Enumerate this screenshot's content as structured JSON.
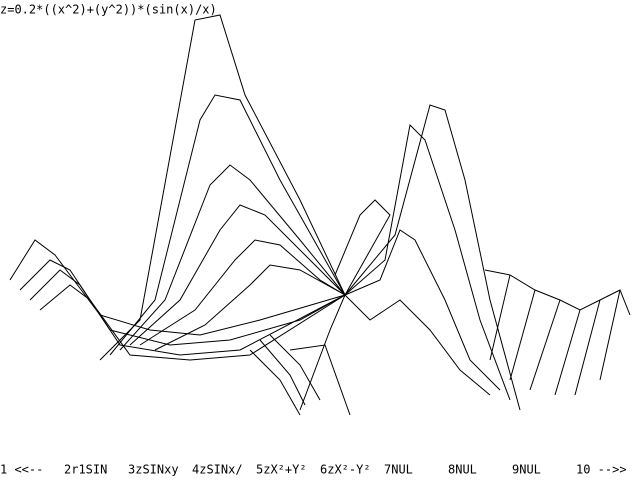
{
  "formula": "z=0.2*((x^2)+(y^2))*(sin(x)/x)",
  "menu": [
    "1 <<--",
    "2r1SIN",
    "3zSINxy",
    "4zSINx/",
    "5zX²+Y²",
    "6zX²-Y²",
    "7NUL",
    "8NUL",
    "9NUL",
    "10 -->>"
  ]
}
